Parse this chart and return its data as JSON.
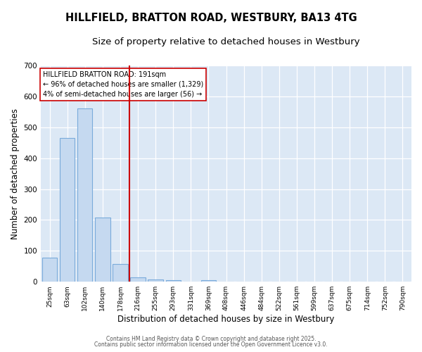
{
  "title1": "HILLFIELD, BRATTON ROAD, WESTBURY, BA13 4TG",
  "title2": "Size of property relative to detached houses in Westbury",
  "xlabel": "Distribution of detached houses by size in Westbury",
  "ylabel": "Number of detached properties",
  "bar_values": [
    78,
    465,
    562,
    209,
    57,
    15,
    7,
    5,
    0,
    5,
    0,
    0,
    0,
    0,
    0,
    0,
    0,
    0,
    0,
    0,
    0
  ],
  "bar_labels": [
    "25sqm",
    "63sqm",
    "102sqm",
    "140sqm",
    "178sqm",
    "216sqm",
    "255sqm",
    "293sqm",
    "331sqm",
    "369sqm",
    "408sqm",
    "446sqm",
    "484sqm",
    "522sqm",
    "561sqm",
    "599sqm",
    "637sqm",
    "675sqm",
    "714sqm",
    "752sqm",
    "790sqm"
  ],
  "bar_color": "#c5d9f0",
  "bar_edgecolor": "#7aabdb",
  "bar_linewidth": 0.8,
  "vline_x": 4.5,
  "vline_color": "#cc0000",
  "annotation_title": "HILLFIELD BRATTON ROAD: 191sqm",
  "annotation_line1": "← 96% of detached houses are smaller (1,329)",
  "annotation_line2": "4% of semi-detached houses are larger (56) →",
  "annotation_box_facecolor": "#ffffff",
  "annotation_box_edgecolor": "#cc0000",
  "ylim": [
    0,
    700
  ],
  "yticks": [
    0,
    100,
    200,
    300,
    400,
    500,
    600,
    700
  ],
  "plot_bg_color": "#dce8f5",
  "fig_bg_color": "#ffffff",
  "grid_color": "#ffffff",
  "footer1": "Contains HM Land Registry data © Crown copyright and database right 2025.",
  "footer2": "Contains public sector information licensed under the Open Government Licence v3.0.",
  "title_fontsize": 10.5,
  "subtitle_fontsize": 9.5,
  "tick_fontsize": 6.5,
  "axis_label_fontsize": 8.5,
  "annotation_fontsize": 7,
  "footer_fontsize": 5.5
}
